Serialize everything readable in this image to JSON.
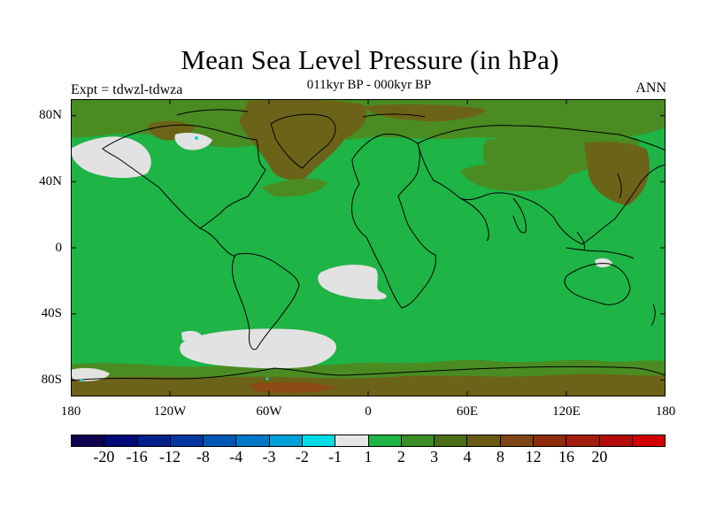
{
  "title": "Mean Sea Level Pressure (in hPa)",
  "subtitle": "011kyr BP - 000kyr BP",
  "experiment": "Expt = tdwzl-tdwza",
  "season": "ANN",
  "colors": {
    "ocean_land_base": "#1eb446",
    "low_positive": "#4a8c22",
    "mid_positive": "#6b6418",
    "high_positive": "#8c4a14",
    "near_zero": "#e2e2e2",
    "coastline": "#000000"
  },
  "lat_labels": [
    "80N",
    "40N",
    "0",
    "40S",
    "80S"
  ],
  "lon_labels": [
    "180",
    "120W",
    "60W",
    "0",
    "60E",
    "120E",
    "180"
  ],
  "colorbar": {
    "colors": [
      "#100050",
      "#000a78",
      "#00208c",
      "#0036a0",
      "#0058b4",
      "#0078c8",
      "#00a0d8",
      "#00dce6",
      "#e6e6e6",
      "#1eb446",
      "#3c8c28",
      "#4a6e18",
      "#6b5a14",
      "#7e4614",
      "#8c2c0a",
      "#a01e0a",
      "#b40c0a",
      "#d20000"
    ],
    "labels": [
      "-20",
      "-16",
      "-12",
      "-8",
      "-4",
      "-3",
      "-2",
      "-1",
      "1",
      "2",
      "3",
      "4",
      "8",
      "12",
      "16",
      "20"
    ]
  }
}
